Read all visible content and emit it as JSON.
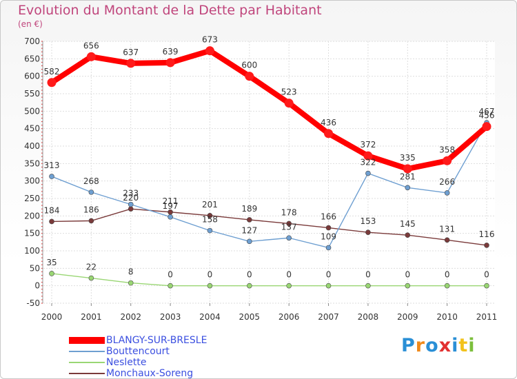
{
  "title": "Evolution du Montant de la Dette par Habitant",
  "unit_label": "(en €)",
  "logo": {
    "text": "Proxiti",
    "letter_colors": [
      "#2a8fd6",
      "#f08a1c",
      "#2a8fd6",
      "#e23030",
      "#2a8fd6",
      "#f2c21c",
      "#7cbf3c"
    ]
  },
  "chart_data": {
    "type": "line",
    "title": "Evolution du Montant de la Dette par Habitant",
    "ylabel": "(en €)",
    "xlabel": "",
    "x": [
      "2000",
      "2001",
      "2002",
      "2003",
      "2004",
      "2005",
      "2006",
      "2007",
      "2008",
      "2009",
      "2010",
      "2011"
    ],
    "ylim": [
      -50,
      700
    ],
    "yticks": [
      -50,
      0,
      50,
      100,
      150,
      200,
      250,
      300,
      350,
      400,
      450,
      500,
      550,
      600,
      650,
      700
    ],
    "grid": true,
    "legend_position": "bottom-left",
    "series": [
      {
        "name": "BLANGY-SUR-BRESLE",
        "color": "#ff0000",
        "values": [
          582,
          656,
          637,
          639,
          673,
          600,
          523,
          436,
          372,
          335,
          358,
          456
        ]
      },
      {
        "name": "Bouttencourt",
        "color": "#6e9fd1",
        "values": [
          313,
          268,
          233,
          197,
          158,
          127,
          137,
          109,
          322,
          281,
          266,
          467
        ]
      },
      {
        "name": "Neslette",
        "color": "#99d673",
        "values": [
          35,
          22,
          8,
          0,
          0,
          0,
          0,
          0,
          0,
          0,
          0,
          0
        ]
      },
      {
        "name": "Monchaux-Soreng",
        "color": "#7a3a3a",
        "values": [
          184,
          186,
          220,
          211,
          201,
          189,
          178,
          166,
          153,
          145,
          131,
          116
        ]
      }
    ]
  }
}
